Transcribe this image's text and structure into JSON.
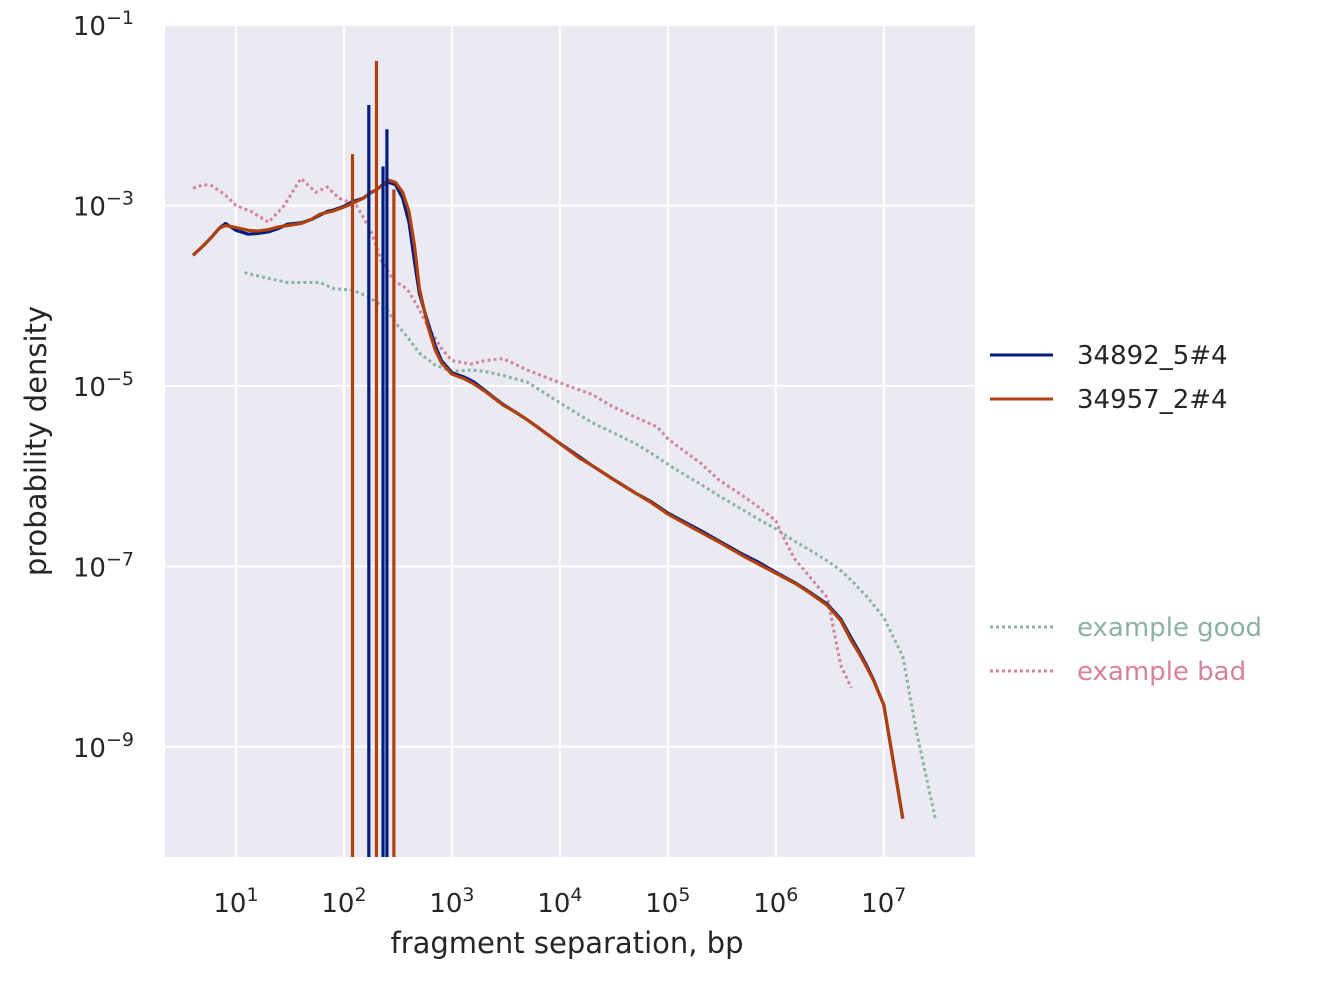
{
  "chart_data": {
    "type": "line",
    "title": "",
    "xlabel": "fragment separation, bp",
    "ylabel": "probability density",
    "xscale": "log",
    "yscale": "log",
    "xlim": [
      2.2,
      70000000
    ],
    "ylim": [
      6e-11,
      0.1
    ],
    "xticks": [
      {
        "value": 10,
        "base": "10",
        "exp": "1"
      },
      {
        "value": 100,
        "base": "10",
        "exp": "2"
      },
      {
        "value": 1000,
        "base": "10",
        "exp": "3"
      },
      {
        "value": 10000,
        "base": "10",
        "exp": "4"
      },
      {
        "value": 100000,
        "base": "10",
        "exp": "5"
      },
      {
        "value": 1000000,
        "base": "10",
        "exp": "6"
      },
      {
        "value": 10000000,
        "base": "10",
        "exp": "7"
      }
    ],
    "yticks": [
      {
        "value": 1e-09,
        "base": "10",
        "exp": "−9"
      },
      {
        "value": 1e-07,
        "base": "10",
        "exp": "−7"
      },
      {
        "value": 1e-05,
        "base": "10",
        "exp": "−5"
      },
      {
        "value": 0.001,
        "base": "10",
        "exp": "−3"
      },
      {
        "value": 0.1,
        "base": "10",
        "exp": "−1"
      }
    ],
    "grid": true,
    "legend_position": "right",
    "background": "#eaeaf2",
    "series": [
      {
        "name": "34892_5#4",
        "color": "#001c7f",
        "style": "solid",
        "x": [
          4,
          5,
          6,
          7,
          8,
          10,
          13,
          16,
          20,
          25,
          30,
          40,
          50,
          60,
          70,
          80,
          100,
          120,
          150,
          180,
          200,
          230,
          260,
          300,
          350,
          400,
          450,
          500,
          600,
          700,
          800,
          1000,
          1300,
          1600,
          2000,
          2500,
          3000,
          4000,
          5000,
          6000,
          8000,
          10000,
          15000,
          20000,
          30000,
          50000,
          70000,
          100000,
          150000,
          200000,
          300000,
          500000,
          700000,
          1000000,
          1500000,
          2000000,
          3000000,
          4000000,
          5000000,
          6000000,
          7000000,
          8000000,
          10000000,
          12000000,
          15000000
        ],
        "y": [
          0.00028,
          0.00036,
          0.00045,
          0.00056,
          0.00063,
          0.00053,
          0.00048,
          0.00049,
          0.00051,
          0.00056,
          0.00062,
          0.00064,
          0.0007,
          0.00078,
          0.00086,
          0.00089,
          0.00098,
          0.0011,
          0.0012,
          0.0014,
          0.0015,
          0.0017,
          0.0018,
          0.0017,
          0.0012,
          0.00065,
          0.00024,
          0.000105,
          5e-05,
          2.8e-05,
          1.9e-05,
          1.4e-05,
          1.25e-05,
          1.1e-05,
          9e-06,
          7.3e-06,
          6.2e-06,
          5e-06,
          4.2e-06,
          3.6e-06,
          2.8e-06,
          2.3e-06,
          1.65e-06,
          1.3e-06,
          9.5e-07,
          6.5e-07,
          5.2e-07,
          3.9e-07,
          3e-07,
          2.5e-07,
          1.9e-07,
          1.35e-07,
          1.1e-07,
          8.6e-08,
          6.6e-08,
          5.3e-08,
          3.8e-08,
          2.6e-08,
          1.6e-08,
          1.1e-08,
          7.8e-09,
          5.6e-09,
          2.9e-09,
          8e-10,
          1.6e-10
        ]
      },
      {
        "name": "34957_2#4",
        "color": "#b1400d",
        "style": "solid",
        "x": [
          4,
          5,
          6,
          7,
          8,
          10,
          13,
          16,
          20,
          25,
          30,
          40,
          50,
          60,
          70,
          80,
          100,
          120,
          150,
          180,
          200,
          230,
          260,
          300,
          350,
          400,
          450,
          500,
          600,
          700,
          800,
          1000,
          1300,
          1600,
          2000,
          2500,
          3000,
          4000,
          5000,
          6000,
          8000,
          10000,
          15000,
          20000,
          30000,
          50000,
          70000,
          100000,
          150000,
          200000,
          300000,
          500000,
          700000,
          1000000,
          1500000,
          2000000,
          3000000,
          4000000,
          5000000,
          6000000,
          7000000,
          8000000,
          10000000,
          12000000,
          15000000
        ],
        "y": [
          0.00028,
          0.00036,
          0.00045,
          0.00056,
          0.0006,
          0.00057,
          0.00053,
          0.00052,
          0.00054,
          0.00058,
          0.0006,
          0.00063,
          0.0007,
          0.0008,
          0.00084,
          0.00087,
          0.00096,
          0.00105,
          0.0012,
          0.0014,
          0.0015,
          0.0017,
          0.0019,
          0.0018,
          0.0014,
          0.00085,
          0.00036,
          0.00012,
          4.5e-05,
          2.5e-05,
          1.8e-05,
          1.35e-05,
          1.2e-05,
          1.05e-05,
          8.8e-06,
          7.2e-06,
          6.1e-06,
          5e-06,
          4.2e-06,
          3.6e-06,
          2.8e-06,
          2.3e-06,
          1.6e-06,
          1.3e-06,
          9.5e-07,
          6.5e-07,
          5.1e-07,
          3.8e-07,
          2.9e-07,
          2.4e-07,
          1.85e-07,
          1.3e-07,
          1.05e-07,
          8.4e-08,
          6.5e-08,
          5.2e-08,
          3.7e-08,
          2.5e-08,
          1.5e-08,
          1.05e-08,
          7.5e-09,
          5.5e-09,
          2.9e-09,
          8e-10,
          1.6e-10
        ]
      },
      {
        "name": "example good",
        "color": "#8db1a6",
        "style": "dotted",
        "x": [
          12,
          20,
          30,
          40,
          60,
          80,
          120,
          160,
          200,
          250,
          300,
          400,
          500,
          700,
          1000,
          1500,
          2000,
          3000,
          5000,
          7000,
          10000,
          15000,
          20000,
          30000,
          50000,
          70000,
          100000,
          150000,
          200000,
          300000,
          500000,
          700000,
          1000000,
          1500000,
          2000000,
          3000000,
          4000000,
          5000000,
          7000000,
          10000000,
          15000000,
          20000000,
          30000000
        ],
        "y": [
          0.00018,
          0.000155,
          0.00014,
          0.00014,
          0.00014,
          0.00012,
          0.000115,
          0.0001,
          8.5e-05,
          7e-05,
          5e-05,
          3.3e-05,
          2.3e-05,
          1.7e-05,
          1.45e-05,
          1.5e-05,
          1.45e-05,
          1.3e-05,
          1.1e-05,
          8.5e-06,
          6.5e-06,
          4.8e-06,
          3.9e-06,
          3.1e-06,
          2.3e-06,
          1.8e-06,
          1.35e-06,
          1e-06,
          8.2e-07,
          6e-07,
          4.2e-07,
          3.3e-07,
          2.6e-07,
          1.9e-07,
          1.55e-07,
          1.15e-07,
          9e-08,
          7e-08,
          4.6e-08,
          2.7e-08,
          1e-08,
          1.5e-09,
          1.6e-10
        ]
      },
      {
        "name": "example bad",
        "color": "#d5829b",
        "style": "dotted",
        "x": [
          4,
          5,
          6,
          8,
          10,
          14,
          20,
          28,
          40,
          55,
          70,
          90,
          110,
          130,
          150,
          180,
          220,
          260,
          300,
          350,
          400,
          500,
          600,
          800,
          1000,
          1500,
          2000,
          3000,
          5000,
          8000,
          12000,
          20000,
          30000,
          50000,
          80000,
          100000,
          150000,
          200000,
          300000,
          500000,
          700000,
          1000000,
          1200000,
          1500000,
          2000000,
          3000000,
          4000000,
          5000000
        ],
        "y": [
          0.00155,
          0.0017,
          0.00165,
          0.0013,
          0.001,
          0.00085,
          0.00065,
          0.001,
          0.002,
          0.0014,
          0.0016,
          0.0012,
          0.0011,
          0.001,
          0.00075,
          0.0005,
          0.00025,
          0.00018,
          0.00014,
          0.00013,
          0.00011,
          7e-05,
          4.5e-05,
          2.6e-05,
          1.9e-05,
          1.75e-05,
          1.9e-05,
          2e-05,
          1.5e-05,
          1.2e-05,
          1e-05,
          8e-06,
          6e-06,
          4.5e-06,
          3.5e-06,
          2.6e-06,
          1.8e-06,
          1.4e-06,
          9e-07,
          6e-07,
          4.5e-07,
          3.2e-07,
          2e-07,
          1.2e-07,
          8e-08,
          4.5e-08,
          8e-09,
          4.5e-09
        ]
      }
    ],
    "spikes": [
      {
        "series": "34892_5#4",
        "x": 170,
        "y": 0.013
      },
      {
        "series": "34892_5#4",
        "x": 230,
        "y": 0.0027
      },
      {
        "series": "34892_5#4",
        "x": 250,
        "y": 0.007
      },
      {
        "series": "34957_2#4",
        "x": 120,
        "y": 0.0037
      },
      {
        "series": "34957_2#4",
        "x": 200,
        "y": 0.04
      },
      {
        "series": "34957_2#4",
        "x": 290,
        "y": 0.0015
      }
    ],
    "legend": [
      {
        "label": "34892_5#4",
        "color": "#001c7f",
        "style": "solid",
        "text_color": "#262626"
      },
      {
        "label": "34957_2#4",
        "color": "#b1400d",
        "style": "solid",
        "text_color": "#262626"
      },
      {
        "label": "example good",
        "color": "#8db1a6",
        "style": "dotted",
        "text_color": "#8db1a6"
      },
      {
        "label": "example bad",
        "color": "#d5829b",
        "style": "dotted",
        "text_color": "#d5829b"
      }
    ]
  }
}
